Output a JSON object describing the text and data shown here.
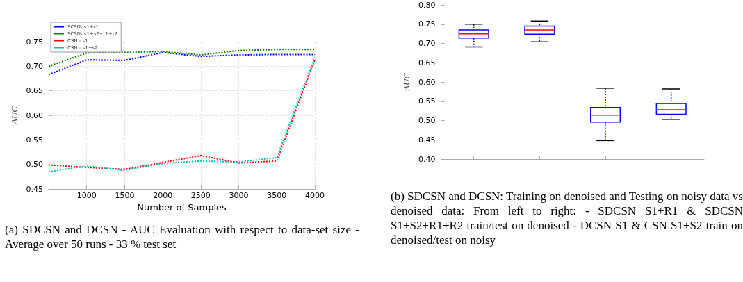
{
  "chart_data": [
    {
      "type": "line",
      "xlabel": "Number of Samples",
      "ylabel": "AUC",
      "annotations": [
        "(a) SDCSN and DCSN - AUC Evaluation with respect to data-set size - Average over 50 runs - 33 % test set"
      ],
      "x": [
        500,
        1000,
        1500,
        2000,
        2500,
        3000,
        3500,
        4000
      ],
      "series": [
        {
          "name": "SCSN- s1+r1",
          "color": "#0000ff",
          "values": [
            0.683,
            0.713,
            0.712,
            0.728,
            0.72,
            0.723,
            0.724,
            0.724
          ]
        },
        {
          "name": "SCSN- s1+s2+r1+r2",
          "color": "#008000",
          "values": [
            0.7,
            0.727,
            0.728,
            0.73,
            0.723,
            0.732,
            0.734,
            0.734
          ]
        },
        {
          "name": "CSN - s1",
          "color": "#ff0000",
          "values": [
            0.499,
            0.494,
            0.49,
            0.504,
            0.518,
            0.503,
            0.507,
            0.713
          ]
        },
        {
          "name": "CSN - s1+s2",
          "color": "#00bfbf",
          "values": [
            0.485,
            0.497,
            0.488,
            0.502,
            0.507,
            0.505,
            0.514,
            0.718
          ]
        }
      ],
      "xlim": [
        500,
        4000
      ],
      "xticks": [
        1000,
        1500,
        2000,
        2500,
        3000,
        3500,
        4000
      ],
      "ylim": [
        0.45,
        0.75
      ],
      "yticks": [
        0.45,
        {
          "value": 0.5,
          "label": "0.50"
        },
        0.55,
        {
          "value": 0.6,
          "label": "0.60"
        },
        0.65,
        {
          "value": 0.7,
          "label": "0.70"
        },
        0.75
      ],
      "grid": true,
      "legend": "top left",
      "marker": "none",
      "line_style": "dotted"
    },
    {
      "type": "box",
      "ylabel": "AUC",
      "annotations": [
        "(b) SDCSN and DCSN: Training on denoised and Testing on noisy data vs denoised data: From left to right: - SDCSN S1+R1 & SDCSN S1+S2+R1+R2 train/test on denoised - DCSN S1 & CSN S1+S2 train on denoised/test on noisy"
      ],
      "categories": [
        null,
        null,
        null,
        null
      ],
      "series": [
        {
          "color": "#0000ff",
          "boxes": [
            {
              "low": 0.691,
              "q1": 0.714,
              "median": 0.725,
              "q3": 0.735,
              "high": 0.75
            },
            {
              "low": 0.704,
              "q1": 0.724,
              "median": 0.735,
              "q3": 0.745,
              "high": 0.758
            },
            {
              "low": 0.448,
              "q1": 0.496,
              "median": 0.514,
              "q3": 0.534,
              "high": 0.584
            },
            {
              "low": 0.503,
              "q1": 0.516,
              "median": 0.528,
              "q3": 0.544,
              "high": 0.582
            }
          ]
        }
      ],
      "ylim": [
        0.4,
        0.8
      ],
      "yticks": [
        {
          "value": 0.4,
          "label": "0.40"
        },
        0.45,
        {
          "value": 0.5,
          "label": "0.50"
        },
        0.55,
        {
          "value": 0.6,
          "label": "0.60"
        },
        0.65,
        {
          "value": 0.7,
          "label": "0.70"
        },
        0.75,
        {
          "value": 0.8,
          "label": "0.80"
        }
      ],
      "grid": false,
      "legend": false
    }
  ]
}
